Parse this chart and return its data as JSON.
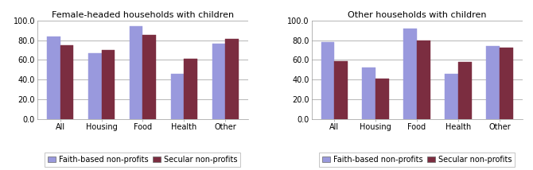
{
  "chart1_title": "Female-headed households with children",
  "chart2_title": "Other households with children",
  "categories": [
    "All",
    "Housing",
    "Food",
    "Health",
    "Other"
  ],
  "chart1_faith": [
    84,
    67,
    94,
    46,
    76
  ],
  "chart1_secular": [
    75,
    70,
    85,
    61,
    81
  ],
  "chart2_faith": [
    78,
    52,
    92,
    46,
    74
  ],
  "chart2_secular": [
    59,
    41,
    80,
    58,
    72
  ],
  "faith_color": "#9999DD",
  "secular_color": "#7B2D40",
  "ylim": [
    0,
    100
  ],
  "yticks": [
    0.0,
    20.0,
    40.0,
    60.0,
    80.0,
    100.0
  ],
  "bar_width": 0.32,
  "legend_faith": "Faith-based non-profits",
  "legend_secular": "Secular non-profits",
  "title_fontsize": 8,
  "tick_fontsize": 7,
  "legend_fontsize": 7
}
